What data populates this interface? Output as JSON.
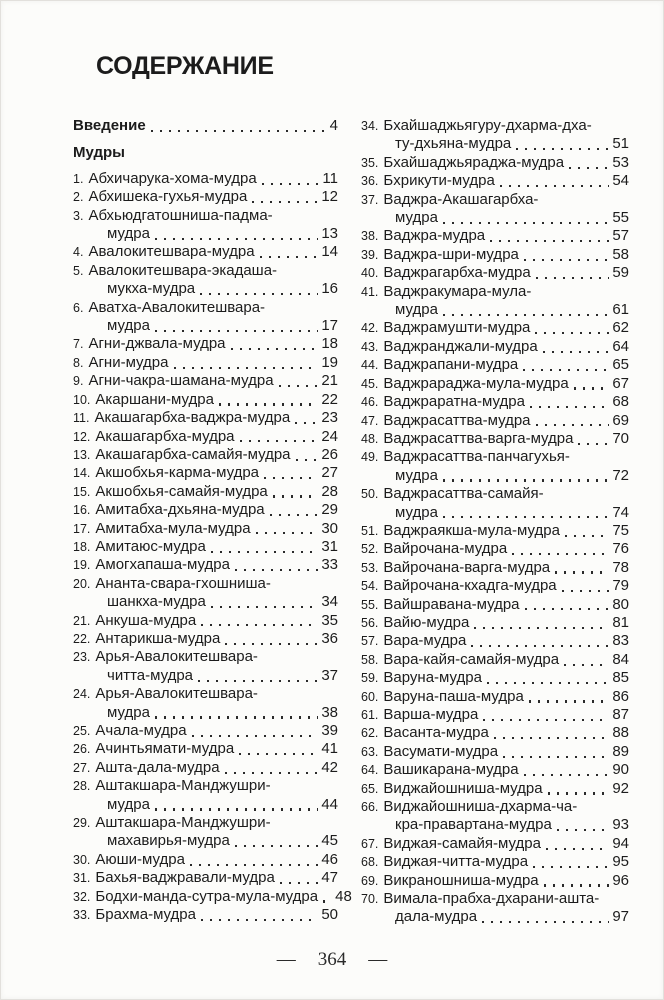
{
  "header": {
    "title": "СОДЕРЖАНИЕ"
  },
  "intro": {
    "label": "Введение",
    "page": "4"
  },
  "section": {
    "label": "Мудры"
  },
  "colors": {
    "text": "#1c1c1c",
    "page_bg": "#fcfcfa"
  },
  "toc": {
    "left": [
      {
        "n": "1",
        "t": [
          "Абхичарука-хома-мудра"
        ],
        "p": "11"
      },
      {
        "n": "2",
        "t": [
          "Абхишека-гухья-мудра"
        ],
        "p": "12"
      },
      {
        "n": "3",
        "t": [
          "Абхьюдгатошниша-падма-",
          "мудра"
        ],
        "p": "13"
      },
      {
        "n": "4",
        "t": [
          "Авалокитешвара-мудра"
        ],
        "p": "14"
      },
      {
        "n": "5",
        "t": [
          "Авалокитешвара-экадаша-",
          "мукха-мудра"
        ],
        "p": "16"
      },
      {
        "n": "6",
        "t": [
          "Аватха-Авалокитешвара-",
          "мудра"
        ],
        "p": "17"
      },
      {
        "n": "7",
        "t": [
          "Агни-джвала-мудра"
        ],
        "p": "18"
      },
      {
        "n": "8",
        "t": [
          "Агни-мудра"
        ],
        "p": "19"
      },
      {
        "n": "9",
        "t": [
          "Агни-чакра-шамана-мудра"
        ],
        "p": "21"
      },
      {
        "n": "10",
        "t": [
          "Акаршани-мудра"
        ],
        "p": "22"
      },
      {
        "n": "11",
        "t": [
          "Акашагарбха-ваджра-мудра"
        ],
        "p": "23"
      },
      {
        "n": "12",
        "t": [
          "Акашагарбха-мудра"
        ],
        "p": "24"
      },
      {
        "n": "13",
        "t": [
          "Акашагарбха-самайя-мудра"
        ],
        "p": "26"
      },
      {
        "n": "14",
        "t": [
          "Акшобхья-карма-мудра"
        ],
        "p": "27"
      },
      {
        "n": "15",
        "t": [
          "Акшобхья-самайя-мудра"
        ],
        "p": "28"
      },
      {
        "n": "16",
        "t": [
          "Амитабха-дхьяна-мудра"
        ],
        "p": "29"
      },
      {
        "n": "17",
        "t": [
          "Амитабха-мула-мудра"
        ],
        "p": "30"
      },
      {
        "n": "18",
        "t": [
          "Амитаюс-мудра"
        ],
        "p": "31"
      },
      {
        "n": "19",
        "t": [
          "Амогхапаша-мудра"
        ],
        "p": "33"
      },
      {
        "n": "20",
        "t": [
          "Ананта-свара-гхошниша-",
          "шанкха-мудра"
        ],
        "p": "34"
      },
      {
        "n": "21",
        "t": [
          "Анкуша-мудра"
        ],
        "p": "35"
      },
      {
        "n": "22",
        "t": [
          "Антарикша-мудра"
        ],
        "p": "36"
      },
      {
        "n": "23",
        "t": [
          "Арья-Авалокитешвара-",
          "читта-мудра"
        ],
        "p": "37"
      },
      {
        "n": "24",
        "t": [
          "Арья-Авалокитешвара-",
          "мудра"
        ],
        "p": "38"
      },
      {
        "n": "25",
        "t": [
          "Ачала-мудра"
        ],
        "p": "39"
      },
      {
        "n": "26",
        "t": [
          "Ачинтьямати-мудра"
        ],
        "p": "41"
      },
      {
        "n": "27",
        "t": [
          "Ашта-дала-мудра"
        ],
        "p": "42"
      },
      {
        "n": "28",
        "t": [
          "Аштакшара-Манджушри-",
          "мудра"
        ],
        "p": "44"
      },
      {
        "n": "29",
        "t": [
          "Аштакшара-Манджушри-",
          "махавирья-мудра"
        ],
        "p": "45"
      },
      {
        "n": "30",
        "t": [
          "Аюши-мудра"
        ],
        "p": "46"
      },
      {
        "n": "31",
        "t": [
          "Бахья-ваджравали-мудра"
        ],
        "p": "47"
      },
      {
        "n": "32",
        "t": [
          "Бодхи-манда-сутра-мула-мудра"
        ],
        "p": "48"
      },
      {
        "n": "33",
        "t": [
          "Брахма-мудра"
        ],
        "p": "50"
      }
    ],
    "right": [
      {
        "n": "34",
        "t": [
          "Бхайшаджьягуру-дхарма-дха-",
          "ту-дхьяна-мудра"
        ],
        "p": "51"
      },
      {
        "n": "35",
        "t": [
          "Бхайшаджьяраджа-мудра"
        ],
        "p": "53"
      },
      {
        "n": "36",
        "t": [
          "Бхрикути-мудра"
        ],
        "p": "54"
      },
      {
        "n": "37",
        "t": [
          "Ваджра-Акашагарбха-",
          "мудра"
        ],
        "p": "55"
      },
      {
        "n": "38",
        "t": [
          "Ваджра-мудра"
        ],
        "p": "57"
      },
      {
        "n": "39",
        "t": [
          "Ваджра-шри-мудра"
        ],
        "p": "58"
      },
      {
        "n": "40",
        "t": [
          "Ваджрагарбха-мудра"
        ],
        "p": "59"
      },
      {
        "n": "41",
        "t": [
          "Ваджракумара-мула-",
          "мудра"
        ],
        "p": "61"
      },
      {
        "n": "42",
        "t": [
          "Ваджрамушти-мудра"
        ],
        "p": "62"
      },
      {
        "n": "43",
        "t": [
          "Ваджранджали-мудра"
        ],
        "p": "64"
      },
      {
        "n": "44",
        "t": [
          "Ваджрапани-мудра"
        ],
        "p": "65"
      },
      {
        "n": "45",
        "t": [
          "Ваджрараджа-мула-мудра"
        ],
        "p": "67"
      },
      {
        "n": "46",
        "t": [
          "Ваджраратна-мудра"
        ],
        "p": "68"
      },
      {
        "n": "47",
        "t": [
          "Ваджрасаттва-мудра"
        ],
        "p": "69"
      },
      {
        "n": "48",
        "t": [
          "Ваджрасаттва-варга-мудра"
        ],
        "p": "70"
      },
      {
        "n": "49",
        "t": [
          "Ваджрасаттва-панчагухья-",
          "мудра"
        ],
        "p": "72"
      },
      {
        "n": "50",
        "t": [
          "Ваджрасаттва-самайя-",
          "мудра"
        ],
        "p": "74"
      },
      {
        "n": "51",
        "t": [
          "Ваджраякша-мула-мудра"
        ],
        "p": "75"
      },
      {
        "n": "52",
        "t": [
          "Вайрочана-мудра"
        ],
        "p": "76"
      },
      {
        "n": "53",
        "t": [
          "Вайрочана-варга-мудра"
        ],
        "p": "78"
      },
      {
        "n": "54",
        "t": [
          "Вайрочана-кхадга-мудра"
        ],
        "p": "79"
      },
      {
        "n": "55",
        "t": [
          "Вайшравана-мудра"
        ],
        "p": "80"
      },
      {
        "n": "56",
        "t": [
          "Вайю-мудра"
        ],
        "p": "81"
      },
      {
        "n": "57",
        "t": [
          "Вара-мудра"
        ],
        "p": "83"
      },
      {
        "n": "58",
        "t": [
          "Вара-кайя-самайя-мудра"
        ],
        "p": "84"
      },
      {
        "n": "59",
        "t": [
          "Варуна-мудра"
        ],
        "p": "85"
      },
      {
        "n": "60",
        "t": [
          "Варуна-паша-мудра"
        ],
        "p": "86"
      },
      {
        "n": "61",
        "t": [
          "Варша-мудра"
        ],
        "p": "87"
      },
      {
        "n": "62",
        "t": [
          "Васанта-мудра"
        ],
        "p": "88"
      },
      {
        "n": "63",
        "t": [
          "Васумати-мудра"
        ],
        "p": "89"
      },
      {
        "n": "64",
        "t": [
          "Вашикарана-мудра"
        ],
        "p": "90"
      },
      {
        "n": "65",
        "t": [
          "Виджайошниша-мудра"
        ],
        "p": "92"
      },
      {
        "n": "66",
        "t": [
          "Виджайошниша-дхарма-ча-",
          "кра-правартана-мудра"
        ],
        "p": "93"
      },
      {
        "n": "67",
        "t": [
          "Виджая-самайя-мудра"
        ],
        "p": "94"
      },
      {
        "n": "68",
        "t": [
          "Виджая-читта-мудра"
        ],
        "p": "95"
      },
      {
        "n": "69",
        "t": [
          "Викраношниша-мудра"
        ],
        "p": "96"
      },
      {
        "n": "70",
        "t": [
          "Вимала-прабха-дхарани-ашта-",
          "дала-мудра"
        ],
        "p": "97"
      }
    ]
  },
  "footer": {
    "left_dash": "—",
    "page_number": "364",
    "right_dash": "—"
  }
}
